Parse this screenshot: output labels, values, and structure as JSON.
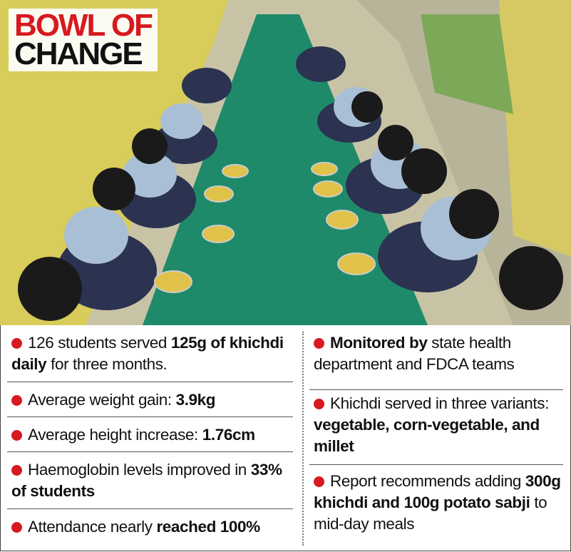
{
  "header": {
    "title_lines": [
      "BOWL OF",
      "CHANGE"
    ]
  },
  "left_column": {
    "items": [
      {
        "runs": [
          {
            "text": "126 students served "
          },
          {
            "text": "125g of khichdi daily",
            "bold": true
          },
          {
            "text": " for three months."
          }
        ]
      },
      {
        "runs": [
          {
            "text": "Average weight gain: "
          },
          {
            "text": "3.9kg",
            "bold": true
          }
        ]
      },
      {
        "runs": [
          {
            "text": "Average height increase: "
          },
          {
            "text": "1.76cm",
            "bold": true
          }
        ]
      },
      {
        "runs": [
          {
            "text": "Haemoglobin levels improved in "
          },
          {
            "text": "33% of students",
            "bold": true
          }
        ]
      },
      {
        "runs": [
          {
            "text": "Attendance nearly "
          },
          {
            "text": "reached 100%",
            "bold": true
          }
        ]
      }
    ]
  },
  "right_column": {
    "items": [
      {
        "runs": [
          {
            "text": "Monitored by",
            "bold": true
          },
          {
            "text": " state health department and FDCA teams"
          }
        ]
      },
      {
        "runs": [
          {
            "text": "Khichdi served in three variants: "
          },
          {
            "text": "vegetable, corn-vegetable, and millet",
            "bold": true
          }
        ]
      },
      {
        "runs": [
          {
            "text": "Report recommends adding "
          },
          {
            "text": "300g khichdi and 100g potato sabji",
            "bold": true
          },
          {
            "text": " to mid-day meals"
          }
        ]
      }
    ]
  }
}
